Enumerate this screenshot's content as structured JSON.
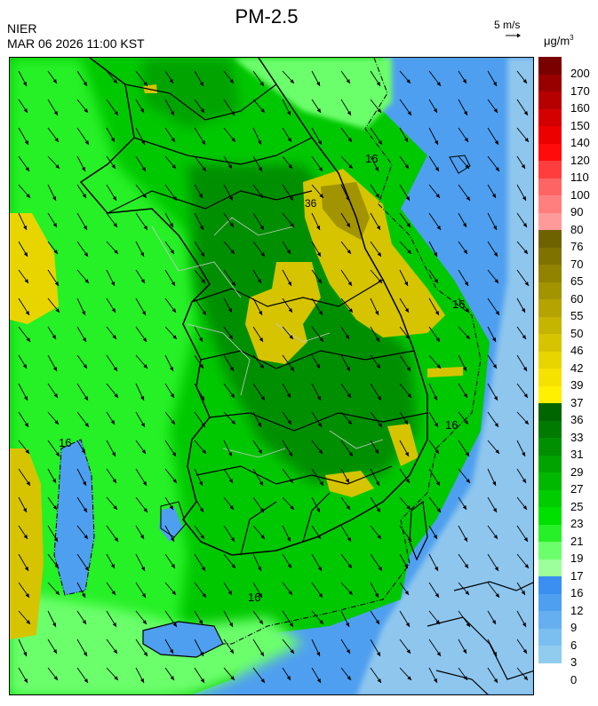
{
  "header": {
    "title": "PM-2.5",
    "agency": "NIER",
    "datetime": "MAR 06 2026 11:00 KST",
    "vector_scale_label": "5 m/s",
    "unit_base": "μg/m",
    "unit_exp": "3"
  },
  "legend": [
    {
      "label": "200",
      "color": "#7a0000"
    },
    {
      "label": "170",
      "color": "#980000"
    },
    {
      "label": "160",
      "color": "#b60000"
    },
    {
      "label": "150",
      "color": "#d40000"
    },
    {
      "label": "140",
      "color": "#ec0000"
    },
    {
      "label": "120",
      "color": "#ff0b0b"
    },
    {
      "label": "110",
      "color": "#ff3d3d"
    },
    {
      "label": "100",
      "color": "#ff6464"
    },
    {
      "label": "90",
      "color": "#ff7f7f"
    },
    {
      "label": "80",
      "color": "#ff9a9a"
    },
    {
      "label": "76",
      "color": "#6e6200"
    },
    {
      "label": "70",
      "color": "#7f7200"
    },
    {
      "label": "65",
      "color": "#918300"
    },
    {
      "label": "60",
      "color": "#a29300"
    },
    {
      "label": "55",
      "color": "#b4a300"
    },
    {
      "label": "50",
      "color": "#c5b400"
    },
    {
      "label": "46",
      "color": "#d6c400"
    },
    {
      "label": "42",
      "color": "#e8d500"
    },
    {
      "label": "39",
      "color": "#f5e200"
    },
    {
      "label": "37",
      "color": "#ffef00"
    },
    {
      "label": "36",
      "color": "#006600"
    },
    {
      "label": "33",
      "color": "#007a00"
    },
    {
      "label": "31",
      "color": "#008f00"
    },
    {
      "label": "29",
      "color": "#00a300"
    },
    {
      "label": "27",
      "color": "#00b800"
    },
    {
      "label": "25",
      "color": "#00cc00"
    },
    {
      "label": "23",
      "color": "#00e000"
    },
    {
      "label": "21",
      "color": "#28f028"
    },
    {
      "label": "19",
      "color": "#6cff6c"
    },
    {
      "label": "17",
      "color": "#9cff9c"
    },
    {
      "label": "16",
      "color": "#3a8ff0"
    },
    {
      "label": "12",
      "color": "#4f9ff0"
    },
    {
      "label": "9",
      "color": "#65aff0"
    },
    {
      "label": "6",
      "color": "#7bbff0"
    },
    {
      "label": "3",
      "color": "#91cbee"
    },
    {
      "label": "0",
      "color": ""
    }
  ],
  "contour_label": "16",
  "contour_label_high": "36",
  "colors": {
    "sea_blue": "#4f9ff0",
    "light_blue": "#8ec6ee",
    "green": "#00c800",
    "dark_green": "#008f00",
    "light_green": "#6cff6c",
    "yellow": "#d6c400",
    "yellow_dark": "#a29300",
    "coast": "#000000",
    "district": "#c8c8c8"
  }
}
